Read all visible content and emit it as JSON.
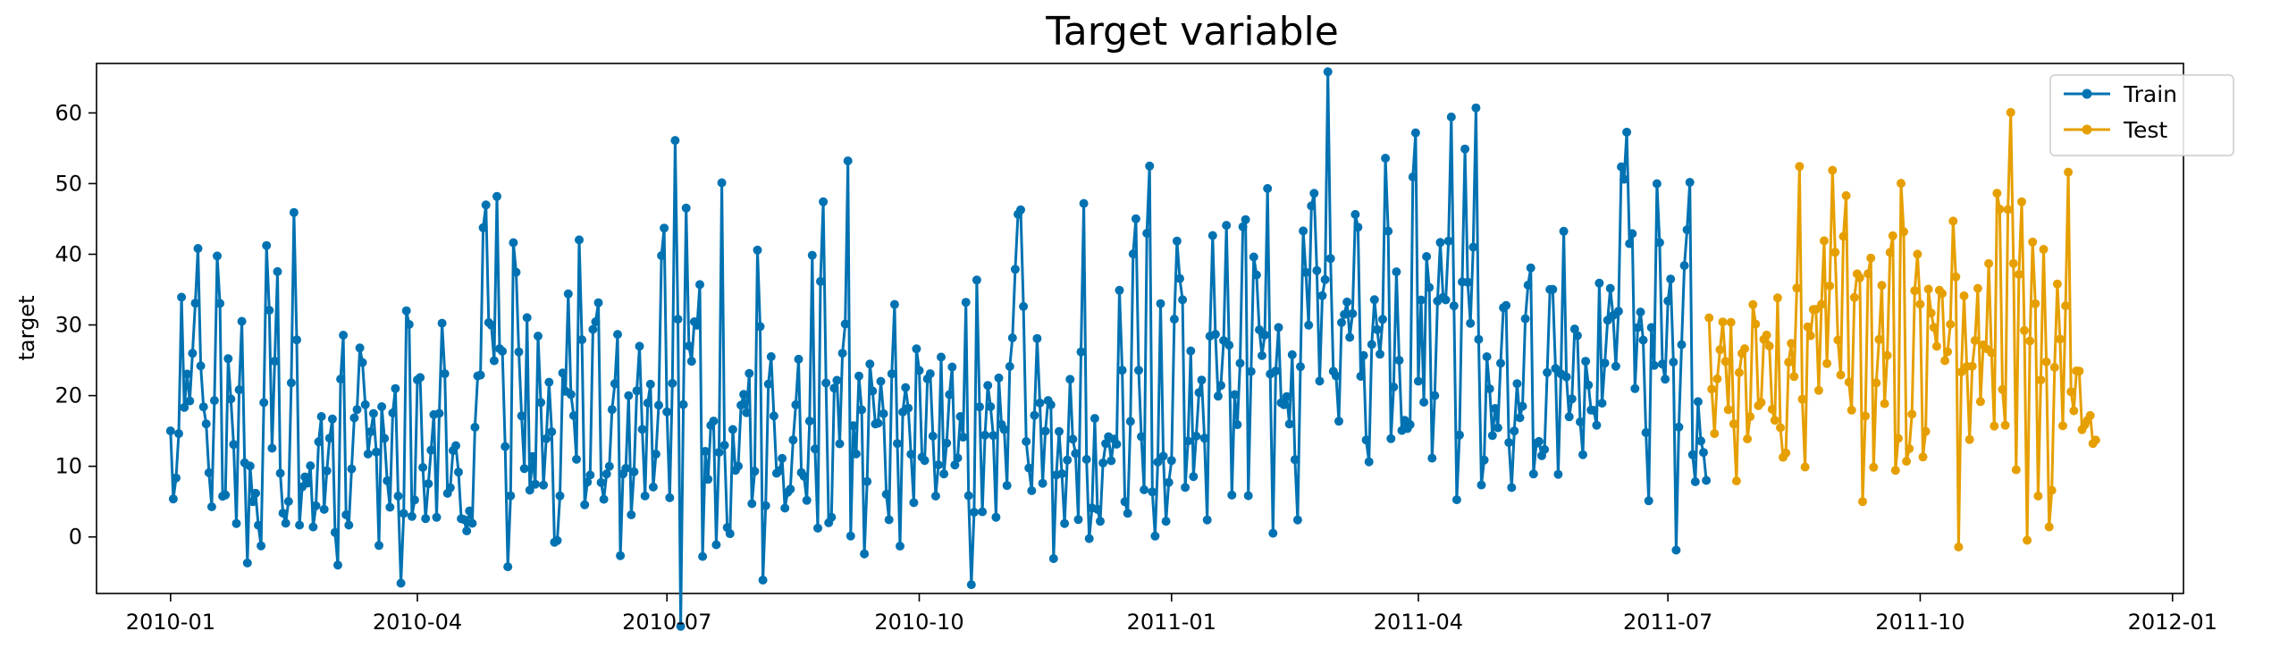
{
  "chart_data": {
    "type": "line",
    "title": "Target variable",
    "xlabel": "",
    "ylabel": "target",
    "x_type": "date",
    "xlim": [
      "2009-12-05",
      "2012-01-05"
    ],
    "ylim": [
      -8,
      67
    ],
    "x_ticks": [
      "2010-01-01",
      "2010-04-01",
      "2010-07-01",
      "2010-10-01",
      "2011-01-01",
      "2011-04-01",
      "2011-07-01",
      "2011-10-01",
      "2012-01-01"
    ],
    "x_tick_labels": [
      "2010-01",
      "2010-04",
      "2010-07",
      "2010-10",
      "2011-01",
      "2011-04",
      "2011-07",
      "2011-10",
      "2012-01"
    ],
    "y_ticks": [
      0,
      10,
      20,
      30,
      40,
      50,
      60
    ],
    "grid": false,
    "legend_position": "top-right",
    "marker": "circle",
    "series": [
      {
        "name": "Train",
        "color": "#0072b2",
        "start": "2010-01-01",
        "end": "2011-07-15",
        "anchors": [
          15,
          1.8,
          28.5,
          15.3,
          46.5,
          20.8,
          16.0,
          2.8,
          37.0,
          0.3,
          25.0,
          6.8,
          24.5,
          1.5,
          10.0,
          0.2,
          43.6,
          16.5,
          28.7,
          0.2,
          7.7,
          46.9,
          1.4,
          10.1,
          0.8,
          17.8,
          0.8,
          24.8,
          1.2,
          26.5,
          0.4,
          12.2,
          29.8,
          9.5,
          16.8,
          -1.1,
          19.4,
          4.2,
          19.0,
          -1.5,
          30.9,
          0.9,
          26.3,
          2.6,
          17.5,
          4.9,
          31.5,
          3.4,
          21.5,
          3.0,
          -2.5,
          5.7,
          25.2,
          44.9,
          20.5,
          43.3,
          13.1,
          -1.5,
          38.5,
          4.0,
          26.2,
          2.0,
          21.5,
          3.0,
          29.3,
          3.0,
          13.5,
          40.8,
          2.0,
          44.0,
          0.5,
          22.3,
          40.6,
          2.3,
          10.0,
          30.0,
          2.6,
          18.6,
          -0.4,
          35.0,
          5.8,
          26.5,
          2.6,
          45.7,
          5.0,
          45.6,
          2.4,
          48.2,
          20.9,
          33.4,
          1.0,
          18.3,
          4.5,
          39.3,
          2.0,
          17.5,
          4.0,
          30.5,
          4.2,
          41.1,
          -3.5,
          25.0,
          2.0,
          24.0,
          0.8,
          10.4,
          23.2,
          2.3,
          36.5,
          -0.8,
          40.6,
          2.0,
          24.5,
          1.7,
          47.9,
          3.5,
          24.5,
          -2.4,
          23.0,
          9.3,
          31.2,
          0.0,
          28.4,
          4.7,
          23.5,
          3.9,
          23.8,
          7.3,
          36.4,
          6.0,
          23.0,
          6.0,
          24.0,
          4.0,
          29.8,
          -4.5,
          29.1,
          10.0,
          25.6,
          1.4,
          26.3,
          6.0,
          36.0,
          47.4,
          19.8,
          7.7,
          28.1,
          0.0,
          19.3,
          1.5,
          14.0,
          3.0,
          20.5,
          6.9,
          47.2,
          2.9,
          12.9,
          2.4,
          18.1,
          4.5,
          32.6,
          3.0,
          26.9,
          44.8,
          6.0,
          46.5,
          3.8,
          25.4,
          3.3,
          22.2,
          45.2,
          6.3,
          28.5,
          6.9,
          24.3,
          5.0,
          41.4,
          10.0,
          47.2,
          5.0,
          21.5,
          43.8,
          6.0,
          55.6,
          13.8,
          49.3,
          11.5,
          31.5,
          12.2,
          23.0,
          6.3,
          43.3,
          28.7,
          63.8,
          16.3,
          60.0,
          29.8,
          17.2,
          36.8,
          28.6,
          46.3,
          24.1,
          15.0,
          38.7,
          29.6,
          49.0,
          13.9,
          35.0,
          13.6,
          24.2,
          55.0,
          14.0,
          36.1,
          8.6,
          41.4,
          17.5,
          53.0,
          13.5,
          54.0,
          14.3,
          53.9,
          7.6,
          25.5,
          17.6,
          12.2,
          29.2,
          6.0,
          20.3,
          18.5,
          40.7,
          12.4,
          11.5,
          18.4,
          33.2,
          10.5,
          42.1,
          14.5,
          44.2,
          12.8,
          26.4,
          14.0,
          36.2,
          14.5,
          42.4,
          16.3,
          51.0,
          57.0,
          13.5,
          39.0,
          7.0,
          27.5,
          57.0,
          6.7,
          55.0,
          9.5,
          23.0,
          46.2,
          11.0,
          18.5,
          8.0
        ],
        "noise_seed": 7,
        "noise": 0.32
      },
      {
        "name": "Test",
        "color": "#e69f00",
        "start": "2011-07-16",
        "end": "2011-12-04",
        "anchors": [
          31.0,
          17.0,
          33.8,
          18.5,
          29.5,
          9.0,
          36.5,
          10.2,
          37.8,
          10.2,
          41.2,
          9.2,
          39.8,
          9.8,
          27.0,
          19.5,
          45.5,
          9.0,
          46.5,
          20.0,
          41.5,
          11.0,
          59.0,
          14.0,
          56.0,
          11.2,
          54.0,
          5.0,
          53.6,
          10.0,
          34.5,
          21.5,
          58.3,
          6.3,
          54.2,
          7.0,
          30.0,
          48.0,
          7.8,
          37.0,
          28.0,
          36.0,
          18.4,
          42.8,
          6.3,
          42.5,
          10.5,
          33.0,
          11.8,
          40.9,
          20.0,
          57.4,
          10.5,
          63.5,
          9.5,
          45.0,
          7.8,
          39.8,
          9.0,
          51.7,
          7.5,
          42.0,
          9.5,
          47.2,
          10.0,
          25.8,
          14.5,
          18.3,
          13.7
        ],
        "noise_seed": 11,
        "noise": 0.28
      }
    ]
  }
}
